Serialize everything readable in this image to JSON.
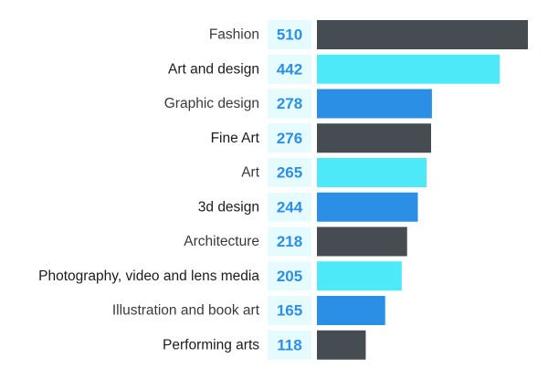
{
  "chart_data": {
    "type": "bar",
    "orientation": "horizontal",
    "title": "",
    "xlabel": "",
    "ylabel": "",
    "xlim": [
      0,
      510
    ],
    "grid": false,
    "legend": "none",
    "categories": [
      "Fashion",
      "Art and design",
      "Graphic design",
      "Fine Art",
      "Art",
      "3d design",
      "Architecture",
      "Photography, video and lens media",
      "Illustration and book art",
      "Performing arts"
    ],
    "values": [
      510,
      442,
      278,
      276,
      265,
      244,
      218,
      205,
      165,
      118
    ],
    "colors": {
      "bar_cycle": [
        "#454d52",
        "#4ee9f8",
        "#2b8fe6"
      ],
      "value_box": "#e6fbfe",
      "value_text": "#2b8fe6"
    }
  }
}
